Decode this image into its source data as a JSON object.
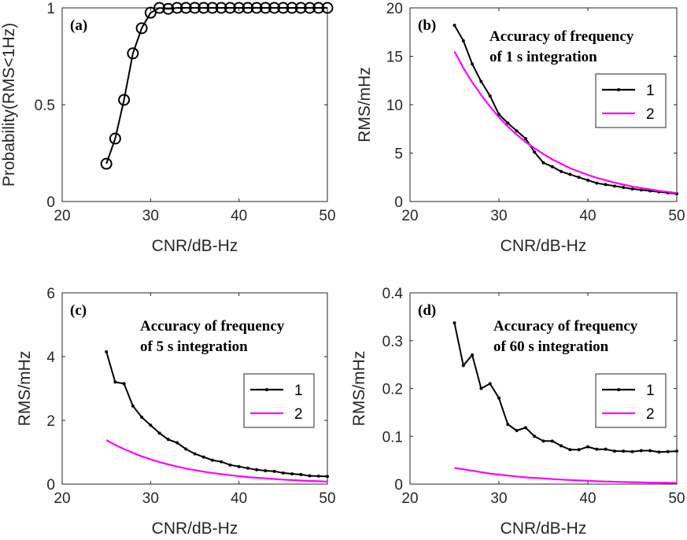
{
  "chart_data": [
    {
      "panel": "(a)",
      "type": "line",
      "xlabel": "CNR/dB-Hz",
      "ylabel": "Probability(RMS<1Hz)",
      "xlim": [
        20,
        50
      ],
      "ylim": [
        0,
        1
      ],
      "xticks": [
        20,
        30,
        40,
        50
      ],
      "yticks": [
        0,
        0.5,
        1
      ],
      "annotation": [],
      "legend": [],
      "series": [
        {
          "name": "",
          "color": "#000000",
          "marker": "circle",
          "x": [
            25,
            26,
            27,
            28,
            29,
            30,
            31,
            32,
            33,
            34,
            35,
            36,
            37,
            38,
            39,
            40,
            41,
            42,
            43,
            44,
            45,
            46,
            47,
            48,
            49,
            50
          ],
          "y": [
            0.195,
            0.325,
            0.525,
            0.765,
            0.895,
            0.975,
            1,
            0.995,
            1,
            1,
            1,
            1,
            1,
            1,
            1,
            1,
            1,
            1,
            1,
            1,
            1,
            1,
            1,
            1,
            1,
            1
          ]
        }
      ]
    },
    {
      "panel": "(b)",
      "type": "line",
      "xlabel": "CNR/dB-Hz",
      "ylabel": "RMS/mHz",
      "xlim": [
        20,
        50
      ],
      "ylim": [
        0,
        20
      ],
      "xticks": [
        20,
        30,
        40,
        50
      ],
      "yticks": [
        0,
        5,
        10,
        15,
        20
      ],
      "annotation": [
        "Accuracy of frequency",
        "of 1 s integration"
      ],
      "legend": [
        "1",
        "2"
      ],
      "series": [
        {
          "name": "1",
          "color": "#000000",
          "marker": "dot",
          "x": [
            25,
            26,
            27,
            28,
            29,
            30,
            31,
            32,
            33,
            34,
            35,
            36,
            37,
            38,
            39,
            40,
            41,
            42,
            43,
            44,
            45,
            46,
            47,
            48,
            49,
            50
          ],
          "y": [
            18.2,
            16.6,
            14.2,
            12.4,
            10.9,
            9.0,
            8.1,
            7.3,
            6.5,
            5.1,
            4.0,
            3.6,
            3.1,
            2.8,
            2.5,
            2.2,
            1.9,
            1.75,
            1.6,
            1.45,
            1.3,
            1.2,
            1.1,
            1.0,
            0.9,
            0.8
          ]
        },
        {
          "name": "2",
          "color": "#ff00ff",
          "marker": "none",
          "x": [
            25,
            26,
            27,
            28,
            29,
            30,
            31,
            32,
            33,
            34,
            35,
            36,
            37,
            38,
            39,
            40,
            41,
            42,
            43,
            44,
            45,
            46,
            47,
            48,
            49,
            50
          ],
          "y": [
            15.5,
            13.8,
            12.3,
            11.0,
            9.8,
            8.7,
            7.75,
            6.9,
            6.15,
            5.5,
            4.9,
            4.35,
            3.9,
            3.45,
            3.1,
            2.75,
            2.45,
            2.2,
            1.95,
            1.75,
            1.55,
            1.4,
            1.25,
            1.1,
            1.0,
            0.87
          ]
        }
      ]
    },
    {
      "panel": "(c)",
      "type": "line",
      "xlabel": "CNR/dB-Hz",
      "ylabel": "RMS/mHz",
      "xlim": [
        20,
        50
      ],
      "ylim": [
        0,
        6
      ],
      "xticks": [
        20,
        30,
        40,
        50
      ],
      "yticks": [
        0,
        2,
        4,
        6
      ],
      "annotation": [
        "Accuracy of frequency",
        "of 5 s integration"
      ],
      "legend": [
        "1",
        "2"
      ],
      "series": [
        {
          "name": "1",
          "color": "#000000",
          "marker": "dot",
          "x": [
            25,
            26,
            27,
            28,
            29,
            30,
            31,
            32,
            33,
            34,
            35,
            36,
            37,
            38,
            39,
            40,
            41,
            42,
            43,
            44,
            45,
            46,
            47,
            48,
            49,
            50
          ],
          "y": [
            4.15,
            3.2,
            3.15,
            2.45,
            2.1,
            1.85,
            1.6,
            1.4,
            1.3,
            1.1,
            0.95,
            0.85,
            0.75,
            0.7,
            0.6,
            0.55,
            0.5,
            0.45,
            0.42,
            0.4,
            0.35,
            0.32,
            0.3,
            0.26,
            0.25,
            0.24
          ]
        },
        {
          "name": "2",
          "color": "#ff00ff",
          "marker": "none",
          "x": [
            25,
            26,
            27,
            28,
            29,
            30,
            31,
            32,
            33,
            34,
            35,
            36,
            37,
            38,
            39,
            40,
            41,
            42,
            43,
            44,
            45,
            46,
            47,
            48,
            49,
            50
          ],
          "y": [
            1.38,
            1.23,
            1.1,
            0.98,
            0.87,
            0.78,
            0.69,
            0.62,
            0.55,
            0.49,
            0.44,
            0.39,
            0.35,
            0.31,
            0.28,
            0.25,
            0.22,
            0.2,
            0.18,
            0.16,
            0.14,
            0.125,
            0.11,
            0.1,
            0.09,
            0.08
          ]
        }
      ]
    },
    {
      "panel": "(d)",
      "type": "line",
      "xlabel": "CNR/dB-Hz",
      "ylabel": "RMS/mHz",
      "xlim": [
        20,
        50
      ],
      "ylim": [
        0,
        0.4
      ],
      "xticks": [
        20,
        30,
        40,
        50
      ],
      "yticks": [
        0,
        0.1,
        0.2,
        0.3,
        0.4
      ],
      "annotation": [
        "Accuracy of frequency",
        "of 60 s integration"
      ],
      "legend": [
        "1",
        "2"
      ],
      "series": [
        {
          "name": "1",
          "color": "#000000",
          "marker": "dot",
          "x": [
            25,
            26,
            27,
            28,
            29,
            30,
            31,
            32,
            33,
            34,
            35,
            36,
            37,
            38,
            39,
            40,
            41,
            42,
            43,
            44,
            45,
            46,
            47,
            48,
            49,
            50
          ],
          "y": [
            0.337,
            0.248,
            0.27,
            0.2,
            0.21,
            0.18,
            0.125,
            0.112,
            0.118,
            0.1,
            0.09,
            0.09,
            0.08,
            0.072,
            0.072,
            0.078,
            0.073,
            0.073,
            0.069,
            0.069,
            0.068,
            0.07,
            0.07,
            0.067,
            0.068,
            0.069
          ]
        },
        {
          "name": "2",
          "color": "#ff00ff",
          "marker": "none",
          "x": [
            25,
            26,
            27,
            28,
            29,
            30,
            31,
            32,
            33,
            34,
            35,
            36,
            37,
            38,
            39,
            40,
            41,
            42,
            43,
            44,
            45,
            46,
            47,
            48,
            49,
            50
          ],
          "y": [
            0.034,
            0.031,
            0.028,
            0.025,
            0.022,
            0.02,
            0.018,
            0.016,
            0.014,
            0.013,
            0.012,
            0.0105,
            0.0095,
            0.0085,
            0.0075,
            0.007,
            0.006,
            0.0055,
            0.005,
            0.0045,
            0.004,
            0.0036,
            0.0032,
            0.0029,
            0.0026,
            0.0023
          ]
        }
      ]
    }
  ]
}
